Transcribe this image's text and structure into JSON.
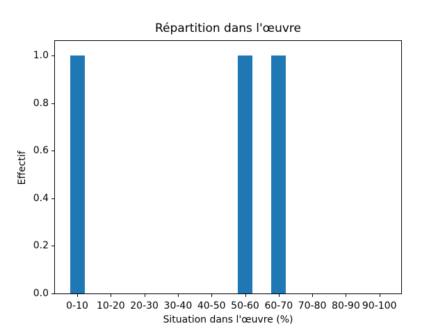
{
  "chart_data": {
    "type": "bar",
    "title": "Répartition dans l'œuvre",
    "xlabel": "Situation dans l'œuvre (%)",
    "ylabel": "Effectif",
    "categories": [
      "0-10",
      "10-20",
      "20-30",
      "30-40",
      "40-50",
      "50-60",
      "60-70",
      "70-80",
      "80-90",
      "90-100"
    ],
    "values": [
      1,
      0,
      0,
      0,
      0,
      1,
      1,
      0,
      0,
      0
    ],
    "yticks": [
      0.0,
      0.2,
      0.4,
      0.6,
      0.8,
      1.0
    ],
    "ytick_labels": [
      "0.0",
      "0.2",
      "0.4",
      "0.6",
      "0.8",
      "1.0"
    ],
    "ylim": [
      0,
      1.05
    ],
    "grid": false,
    "legend": null,
    "bar_color": "#1f77b4",
    "axis_color": "#000000",
    "background_color": "#ffffff"
  }
}
